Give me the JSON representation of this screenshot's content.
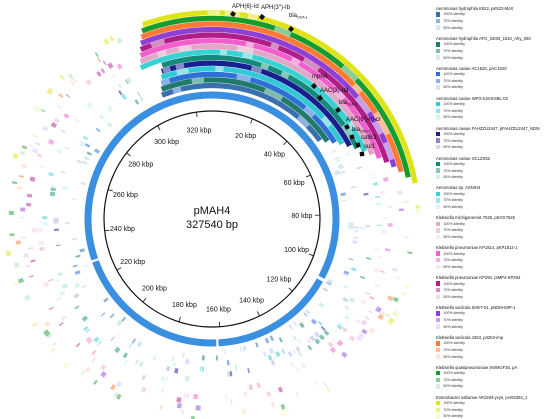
{
  "center": {
    "name": "pMAH4",
    "length": "327540 bp"
  },
  "ticks": [
    "20 kbp",
    "40 kbp",
    "60 kbp",
    "80 kbp",
    "100 kbp",
    "120 kbp",
    "140 kbp",
    "160 kbp",
    "180 kbp",
    "200 kbp",
    "220 kbp",
    "240 kbp",
    "260 kbp",
    "280 kbp",
    "300 kbp",
    "320 kbp"
  ],
  "genes": [
    {
      "label": "APH(6)-Id"
    },
    {
      "label": "APH(3'')-Ib"
    },
    {
      "label": "bla",
      "sub": "OXA-1"
    },
    {
      "label": "mphA"
    },
    {
      "label": "AAC(3)-IId"
    },
    {
      "label": "bla",
      "sub": "TEM-1"
    },
    {
      "label": "AAC(6')-Ib-cr"
    },
    {
      "label": "bla",
      "sub": "OXA-1"
    },
    {
      "label": "catB3"
    },
    {
      "label": "sul1"
    }
  ],
  "identity_labels": [
    "100% identity",
    "70% identity",
    "50% identity"
  ],
  "colors": {
    "backbone": "#3b8fe0",
    "circle": "#111111"
  },
  "legend": [
    {
      "title": "Aeromonas hydrophila K522, pK522-MoX",
      "shades": [
        "#3a6fb0",
        "#8fb3dc",
        "#d7e4f3"
      ]
    },
    {
      "title": "Aeromonas hydrophila AFG_SD03_1510_Ahy_093",
      "shades": [
        "#1f7a6a",
        "#7fbcae",
        "#d4ebe6"
      ]
    },
    {
      "title": "Aeromonas caviae AC1520, pAC1520",
      "shades": [
        "#2f6fd6",
        "#8cb0ec",
        "#d6e3fa"
      ]
    },
    {
      "title": "Aeromonas caviae WP3-S18-ESBL-02",
      "shades": [
        "#30c9d6",
        "#96e3ea",
        "#daf5f7"
      ]
    },
    {
      "title": "Aeromonas caviae FAHZZU2447, pFAHZZU2447_NDM",
      "shades": [
        "#1a1f8f",
        "#8589c6",
        "#d5d7ee"
      ]
    },
    {
      "title": "Aeromonas caviae SCLZS52",
      "shades": [
        "#138a7a",
        "#86c7bd",
        "#d6eeea"
      ]
    },
    {
      "title": "Aeromonas sp. ASNIH4",
      "shades": [
        "#39d1d1",
        "#9de6e6",
        "#dcf7f7"
      ]
    },
    {
      "title": "Klebsiella michiganensis 7525, pKOX7525",
      "shades": [
        "#e2a7c6",
        "#efcde0",
        "#f9ecf3"
      ]
    },
    {
      "title": "Klebsiella pneumoniae KP1814, pKP1814-1",
      "shades": [
        "#f15fcd",
        "#f7aee5",
        "#fde3f6"
      ]
    },
    {
      "title": "Klebsiella pneumoniae KP294, pIMP4-KP294",
      "shades": [
        "#b01f86",
        "#d68fc3",
        "#f1d9ea"
      ]
    },
    {
      "title": "Klebsiella variicola SHET-01, pNDM-IMP-1",
      "shades": [
        "#8e3fd6",
        "#c7a0ec",
        "#ece0fa"
      ]
    },
    {
      "title": "Klebsiella variicola 4253, p4253-imp",
      "shades": [
        "#ff7a33",
        "#ffbd99",
        "#ffe8db"
      ]
    },
    {
      "title": "Klebsiella quasipneumoniae SWMUF35, pA",
      "shades": [
        "#149c2c",
        "#8acd96",
        "#d6f0db"
      ]
    },
    {
      "title": "Enterobacter asburiae AR2284-yvys, pAR2284_1",
      "shades": [
        "#dfe418",
        "#eef18c",
        "#f9fad6"
      ]
    }
  ]
}
